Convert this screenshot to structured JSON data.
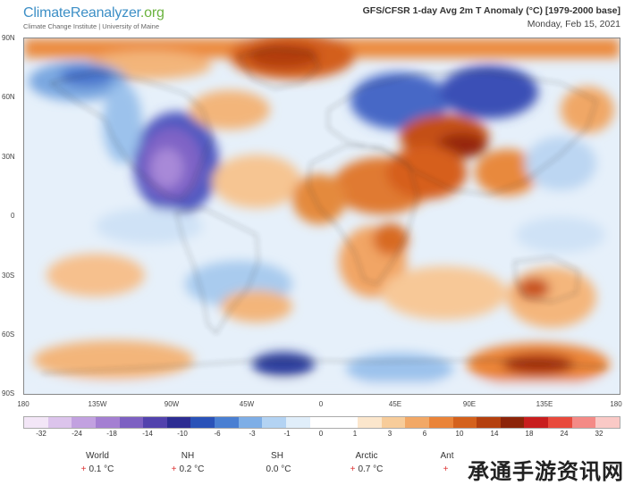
{
  "brand": {
    "name_main": "ClimateReanalyzer",
    "name_tld": ".org",
    "subtitle": "Climate Change Institute | University of Maine"
  },
  "header": {
    "title": "GFS/CFSR 1-day Avg 2m T Anomaly (°C) [1979-2000 base]",
    "date": "Monday, Feb 15, 2021"
  },
  "map": {
    "lat_labels": [
      "90N",
      "60N",
      "30N",
      "0",
      "30S",
      "60S",
      "90S"
    ],
    "lon_labels": [
      "180",
      "135W",
      "90W",
      "45W",
      "0",
      "45E",
      "90E",
      "135E",
      "180"
    ]
  },
  "colorbar": {
    "colors": [
      "#f3e6f7",
      "#dcc4ec",
      "#c2a1e0",
      "#a47fd2",
      "#7d60c2",
      "#5242ad",
      "#2c2c92",
      "#2a52b8",
      "#4a7fd2",
      "#7eaee6",
      "#b3d3f3",
      "#e0eefa",
      "#ffffff",
      "#ffffff",
      "#fbe6cc",
      "#f7cc9a",
      "#f2a866",
      "#ea8439",
      "#d4611c",
      "#b4400e",
      "#8c2409",
      "#c81e1e",
      "#e84a3c",
      "#f48a86",
      "#fac9c6"
    ],
    "tick_labels": [
      "-32",
      "-24",
      "-18",
      "-14",
      "-10",
      "-6",
      "-3",
      "-1",
      "0",
      "1",
      "3",
      "6",
      "10",
      "14",
      "18",
      "24",
      "32"
    ]
  },
  "stats": [
    {
      "label": "World",
      "value": "0.1 °C",
      "mark": "+"
    },
    {
      "label": "NH",
      "value": "0.2 °C",
      "mark": "+"
    },
    {
      "label": "SH",
      "value": "0.0 °C",
      "mark": ""
    },
    {
      "label": "Arctic",
      "value": "0.7 °C",
      "mark": "+"
    },
    {
      "label": "Ant",
      "value": "",
      "mark": "+"
    }
  ],
  "watermark": "承通手游资讯网"
}
